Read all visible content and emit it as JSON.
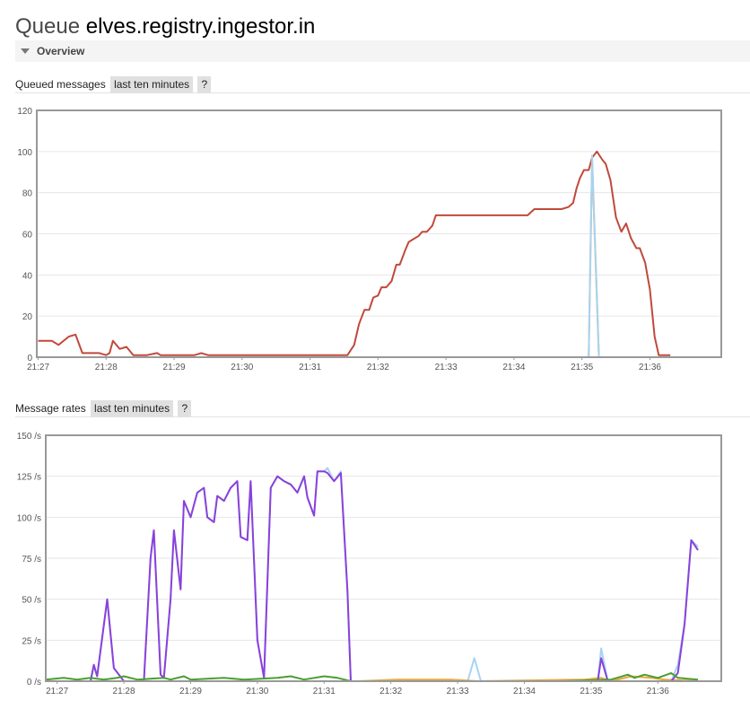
{
  "page": {
    "title_prefix": "Queue",
    "queue_name": "elves.registry.ingestor.in",
    "overview_label": "Overview"
  },
  "charts": [
    {
      "heading": "Queued messages",
      "range_button": "last ten minutes",
      "help_button": "?"
    },
    {
      "heading": "Message rates",
      "range_button": "last ten minutes",
      "help_button": "?"
    }
  ],
  "colors": {
    "red": "#c0493b",
    "orange": "#e9a83c",
    "lightblue": "#a6d3f2",
    "purple": "#8a41db",
    "green": "#4a9e32"
  },
  "chart_data": [
    {
      "type": "line",
      "x_labels": [
        "21:27",
        "21:28",
        "21:29",
        "21:30",
        "21:31",
        "21:32",
        "21:33",
        "21:34",
        "21:35",
        "21:36"
      ],
      "xlim": [
        -0.02,
        10.05
      ],
      "ylim": [
        0,
        120
      ],
      "y_ticks": [
        0,
        20,
        40,
        60,
        80,
        100,
        120
      ],
      "y_tick_labels": [
        "0",
        "20",
        "40",
        "60",
        "80",
        "100",
        "120"
      ],
      "grid": true,
      "series": [
        {
          "color": "#c0493b",
          "points": [
            [
              0,
              8
            ],
            [
              0.2,
              8
            ],
            [
              0.3,
              6
            ],
            [
              0.45,
              10
            ],
            [
              0.55,
              11
            ],
            [
              0.65,
              2
            ],
            [
              0.8,
              2
            ],
            [
              0.9,
              2
            ],
            [
              1,
              1
            ],
            [
              1.05,
              2
            ],
            [
              1.1,
              8
            ],
            [
              1.2,
              4
            ],
            [
              1.3,
              5
            ],
            [
              1.4,
              1
            ],
            [
              1.6,
              1
            ],
            [
              1.75,
              2
            ],
            [
              1.8,
              1
            ],
            [
              2,
              1
            ],
            [
              2.3,
              1
            ],
            [
              2.4,
              2
            ],
            [
              2.5,
              1
            ],
            [
              3,
              1
            ],
            [
              4,
              1
            ],
            [
              4.5,
              1
            ],
            [
              4.55,
              1
            ],
            [
              4.65,
              6
            ],
            [
              4.72,
              16
            ],
            [
              4.8,
              23
            ],
            [
              4.87,
              23
            ],
            [
              4.93,
              29
            ],
            [
              5,
              30
            ],
            [
              5.05,
              34
            ],
            [
              5.12,
              34
            ],
            [
              5.2,
              37
            ],
            [
              5.27,
              45
            ],
            [
              5.32,
              45
            ],
            [
              5.4,
              52
            ],
            [
              5.45,
              56
            ],
            [
              5.5,
              57
            ],
            [
              5.6,
              59
            ],
            [
              5.65,
              61
            ],
            [
              5.72,
              61
            ],
            [
              5.8,
              64
            ],
            [
              5.85,
              69
            ],
            [
              6.2,
              69
            ],
            [
              6.5,
              69
            ],
            [
              6.8,
              69
            ],
            [
              7.2,
              69
            ],
            [
              7.3,
              72
            ],
            [
              7.5,
              72
            ],
            [
              7.7,
              72
            ],
            [
              7.8,
              73
            ],
            [
              7.87,
              75
            ],
            [
              7.92,
              82
            ],
            [
              7.97,
              87
            ],
            [
              8.03,
              91
            ],
            [
              8.1,
              91
            ],
            [
              8.15,
              97
            ],
            [
              8.22,
              100
            ],
            [
              8.3,
              96
            ],
            [
              8.35,
              94
            ],
            [
              8.42,
              86
            ],
            [
              8.5,
              68
            ],
            [
              8.58,
              61
            ],
            [
              8.65,
              65
            ],
            [
              8.72,
              58
            ],
            [
              8.8,
              53
            ],
            [
              8.85,
              53
            ],
            [
              8.93,
              46
            ],
            [
              9,
              33
            ],
            [
              9.07,
              10
            ],
            [
              9.13,
              1
            ],
            [
              9.3,
              1
            ]
          ]
        },
        {
          "color": "#e9a83c",
          "points": [
            [
              0,
              0
            ],
            [
              8.1,
              0
            ],
            [
              8.15,
              96
            ],
            [
              8.25,
              0
            ],
            [
              9.35,
              0
            ]
          ]
        },
        {
          "color": "#a6d3f2",
          "points": [
            [
              4.5,
              0
            ],
            [
              8.1,
              0
            ],
            [
              8.15,
              98
            ],
            [
              8.25,
              0
            ]
          ]
        }
      ]
    },
    {
      "type": "line",
      "x_labels": [
        "21:27",
        "21:28",
        "21:29",
        "21:30",
        "21:31",
        "21:32",
        "21:33",
        "21:34",
        "21:35",
        "21:36"
      ],
      "xlim": [
        -0.17,
        9.95
      ],
      "ylim": [
        0,
        150
      ],
      "y_ticks": [
        0,
        25,
        50,
        75,
        100,
        125,
        150
      ],
      "y_tick_labels": [
        "0 /s",
        "25 /s",
        "50 /s",
        "75 /s",
        "100 /s",
        "125 /s",
        "150 /s"
      ],
      "grid": true,
      "series": [
        {
          "color": "#a6d3f2",
          "points": [
            [
              -0.17,
              0
            ],
            [
              0.5,
              0
            ],
            [
              0.55,
              9
            ],
            [
              0.6,
              3
            ],
            [
              0.75,
              50
            ],
            [
              0.85,
              8
            ],
            [
              1,
              0
            ],
            [
              1.3,
              0
            ],
            [
              1.4,
              75
            ],
            [
              1.45,
              92
            ],
            [
              1.55,
              4
            ],
            [
              1.6,
              2
            ],
            [
              1.7,
              50
            ],
            [
              1.75,
              92
            ],
            [
              1.85,
              56
            ],
            [
              1.9,
              110
            ],
            [
              2,
              100
            ],
            [
              2.1,
              115
            ],
            [
              2.2,
              118
            ],
            [
              2.25,
              100
            ],
            [
              2.35,
              97
            ],
            [
              2.4,
              113
            ],
            [
              2.5,
              110
            ],
            [
              2.6,
              118
            ],
            [
              2.7,
              122
            ],
            [
              2.75,
              88
            ],
            [
              2.85,
              86
            ],
            [
              2.9,
              122
            ],
            [
              3,
              25
            ],
            [
              3.1,
              2
            ],
            [
              3.2,
              118
            ],
            [
              3.3,
              125
            ],
            [
              3.4,
              122
            ],
            [
              3.5,
              120
            ],
            [
              3.6,
              115
            ],
            [
              3.7,
              125
            ],
            [
              3.75,
              112
            ],
            [
              3.85,
              101
            ],
            [
              3.9,
              128
            ],
            [
              4,
              128
            ],
            [
              4.05,
              130
            ],
            [
              4.15,
              122
            ],
            [
              4.25,
              128
            ],
            [
              4.35,
              55
            ],
            [
              4.4,
              0
            ],
            [
              5,
              0
            ],
            [
              6.15,
              0
            ],
            [
              6.25,
              14
            ],
            [
              6.35,
              0
            ],
            [
              8.1,
              0
            ],
            [
              8.15,
              20
            ],
            [
              8.25,
              0
            ],
            [
              9.2,
              0
            ],
            [
              9.3,
              10
            ],
            [
              9.4,
              35
            ],
            [
              9.5,
              86
            ],
            [
              9.6,
              82
            ]
          ]
        },
        {
          "color": "#e9a83c",
          "points": [
            [
              -0.17,
              0
            ],
            [
              4.5,
              0
            ],
            [
              5.1,
              1
            ],
            [
              5.5,
              1
            ],
            [
              5.9,
              1
            ],
            [
              6.3,
              0
            ],
            [
              7.9,
              1
            ],
            [
              8.15,
              2
            ],
            [
              8.3,
              0
            ],
            [
              8.6,
              3
            ],
            [
              8.9,
              2
            ],
            [
              9.1,
              1
            ],
            [
              9.6,
              0
            ]
          ]
        },
        {
          "color": "#8a41db",
          "points": [
            [
              -0.17,
              0
            ],
            [
              0.5,
              0
            ],
            [
              0.55,
              10
            ],
            [
              0.6,
              3
            ],
            [
              0.75,
              50
            ],
            [
              0.85,
              8
            ],
            [
              1,
              0
            ],
            [
              1.3,
              0
            ],
            [
              1.4,
              75
            ],
            [
              1.45,
              92
            ],
            [
              1.55,
              4
            ],
            [
              1.6,
              2
            ],
            [
              1.7,
              50
            ],
            [
              1.75,
              92
            ],
            [
              1.85,
              56
            ],
            [
              1.9,
              110
            ],
            [
              2,
              100
            ],
            [
              2.1,
              115
            ],
            [
              2.2,
              118
            ],
            [
              2.25,
              100
            ],
            [
              2.35,
              97
            ],
            [
              2.4,
              113
            ],
            [
              2.5,
              110
            ],
            [
              2.6,
              118
            ],
            [
              2.7,
              122
            ],
            [
              2.75,
              88
            ],
            [
              2.85,
              86
            ],
            [
              2.9,
              122
            ],
            [
              3,
              25
            ],
            [
              3.1,
              2
            ],
            [
              3.2,
              118
            ],
            [
              3.3,
              125
            ],
            [
              3.4,
              122
            ],
            [
              3.5,
              120
            ],
            [
              3.6,
              115
            ],
            [
              3.7,
              125
            ],
            [
              3.75,
              112
            ],
            [
              3.85,
              101
            ],
            [
              3.9,
              128
            ],
            [
              4,
              128
            ],
            [
              4.05,
              127
            ],
            [
              4.15,
              122
            ],
            [
              4.25,
              127
            ],
            [
              4.35,
              55
            ],
            [
              4.4,
              0
            ],
            [
              8.1,
              0
            ],
            [
              8.15,
              14
            ],
            [
              8.25,
              0
            ],
            [
              9.2,
              0
            ],
            [
              9.3,
              5
            ],
            [
              9.4,
              35
            ],
            [
              9.5,
              86
            ],
            [
              9.6,
              80
            ]
          ]
        },
        {
          "color": "#4a9e32",
          "points": [
            [
              -0.17,
              1
            ],
            [
              0.1,
              2
            ],
            [
              0.3,
              1
            ],
            [
              0.5,
              2
            ],
            [
              0.7,
              1
            ],
            [
              0.9,
              2
            ],
            [
              1,
              3
            ],
            [
              1.2,
              1
            ],
            [
              1.6,
              2
            ],
            [
              1.7,
              1
            ],
            [
              1.9,
              3
            ],
            [
              2,
              1
            ],
            [
              2.5,
              2
            ],
            [
              2.8,
              1
            ],
            [
              3.3,
              2
            ],
            [
              3.5,
              3
            ],
            [
              3.7,
              1
            ],
            [
              4,
              3
            ],
            [
              4.2,
              2
            ],
            [
              4.4,
              0
            ],
            [
              6,
              0
            ],
            [
              7.5,
              0
            ],
            [
              8.3,
              1
            ],
            [
              8.55,
              4
            ],
            [
              8.65,
              2
            ],
            [
              8.8,
              4
            ],
            [
              9,
              2
            ],
            [
              9.2,
              5
            ],
            [
              9.3,
              2
            ],
            [
              9.6,
              1
            ]
          ]
        }
      ]
    }
  ]
}
